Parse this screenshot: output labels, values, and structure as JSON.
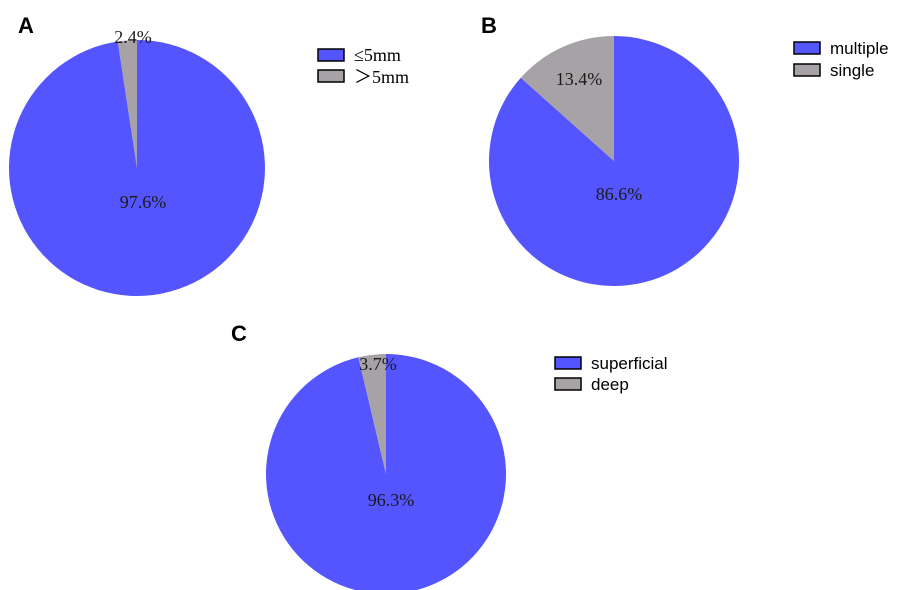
{
  "colors": {
    "primary": "#5555ff",
    "secondary": "#a6a2a6"
  },
  "chart_data": [
    {
      "type": "pie",
      "panel": "A",
      "categories": [
        "≤5mm",
        ">5mm"
      ],
      "values": [
        97.6,
        2.4
      ],
      "slice_labels": [
        "97.6%",
        "2.4%"
      ],
      "legend": [
        {
          "label": "≤5mm",
          "color": "#5555ff"
        },
        {
          "label": "＞5mm",
          "color": "#a6a2a6"
        }
      ],
      "legend_position": "top-right"
    },
    {
      "type": "pie",
      "panel": "B",
      "categories": [
        "multiple",
        "single"
      ],
      "values": [
        86.6,
        13.4
      ],
      "slice_labels": [
        "86.6%",
        "13.4%"
      ],
      "legend": [
        {
          "label": "multiple",
          "color": "#5555ff"
        },
        {
          "label": "single",
          "color": "#a6a2a6"
        }
      ],
      "legend_position": "top-right"
    },
    {
      "type": "pie",
      "panel": "C",
      "categories": [
        "superficial",
        "deep"
      ],
      "values": [
        96.3,
        3.7
      ],
      "slice_labels": [
        "96.3%",
        "3.7%"
      ],
      "legend": [
        {
          "label": "superficial",
          "color": "#5555ff"
        },
        {
          "label": "deep",
          "color": "#a6a2a6"
        }
      ],
      "legend_position": "top-right"
    }
  ]
}
